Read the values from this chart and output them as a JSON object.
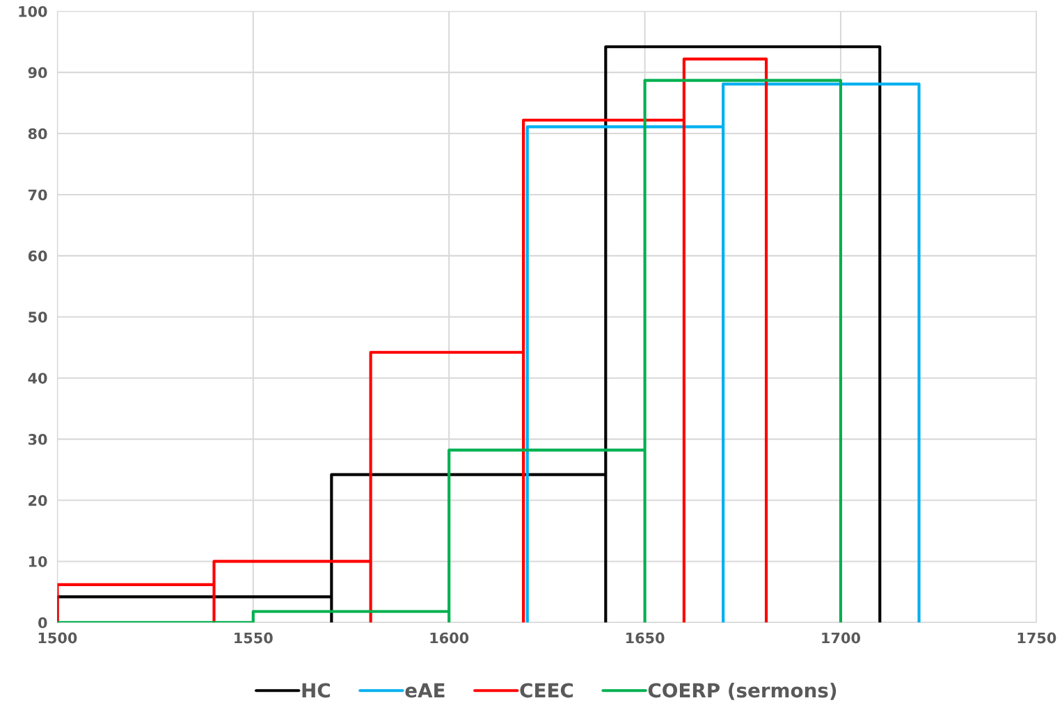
{
  "chart_data": {
    "type": "line",
    "xlim": [
      1500,
      1750
    ],
    "xticks": [
      1500,
      1550,
      1600,
      1650,
      1700,
      1750
    ],
    "ylim": [
      0,
      100
    ],
    "yticks": [
      0,
      10,
      20,
      30,
      40,
      50,
      60,
      70,
      80,
      90,
      100
    ],
    "grid": true,
    "legend": "bottom",
    "marker": "none",
    "line_style": "solid",
    "series": [
      {
        "name": "HC",
        "color": "#000000",
        "x": [
          1500,
          1500,
          1570,
          1570,
          1570,
          1640,
          1640,
          1640,
          1710,
          1710
        ],
        "values": [
          0,
          4.2,
          4.2,
          0,
          24.2,
          24.2,
          0,
          94.2,
          94.2,
          0
        ]
      },
      {
        "name": "eAE",
        "color": "#00b0f0",
        "x": [
          1620,
          1620,
          1670,
          1670,
          1670,
          1720,
          1720
        ],
        "values": [
          0,
          81.1,
          81.1,
          0,
          88.1,
          88.1,
          0
        ]
      },
      {
        "name": "CEEC",
        "color": "#ff0000",
        "x": [
          1500,
          1500,
          1540,
          1540,
          1540,
          1580,
          1580,
          1580,
          1619,
          1619,
          1619,
          1660,
          1660,
          1660,
          1681,
          1681
        ],
        "values": [
          0,
          6.2,
          6.2,
          0,
          10,
          10,
          0,
          44.2,
          44.2,
          0,
          82.2,
          82.2,
          0,
          92.2,
          92.2,
          0
        ]
      },
      {
        "name": "COERP (sermons)",
        "color": "#00b050",
        "x": [
          1500,
          1550,
          1550,
          1600,
          1600,
          1600,
          1650,
          1650,
          1650,
          1700,
          1700
        ],
        "values": [
          0,
          0,
          1.8,
          1.8,
          0,
          28.2,
          28.2,
          0,
          88.7,
          88.7,
          0
        ]
      }
    ]
  }
}
